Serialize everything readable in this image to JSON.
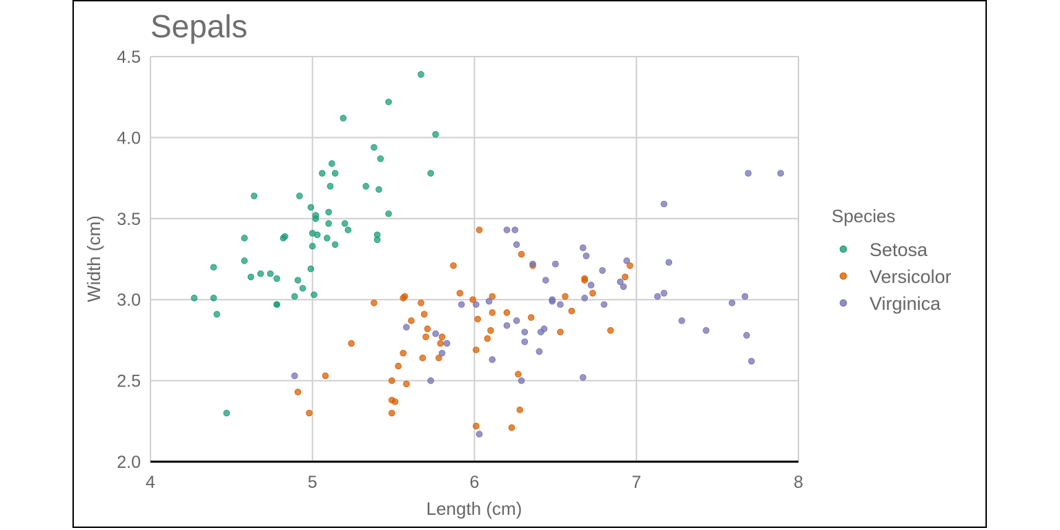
{
  "chart_data": {
    "type": "scatter",
    "title": "Sepals",
    "xlabel": "Length (cm)",
    "ylabel": "Width (cm)",
    "xlim": [
      4,
      8
    ],
    "ylim": [
      2.0,
      4.5
    ],
    "x_ticks": [
      "4",
      "5",
      "6",
      "7",
      "8"
    ],
    "y_ticks": [
      "2.0",
      "2.5",
      "3.0",
      "3.5",
      "4.0",
      "4.5"
    ],
    "grid": true,
    "legend": {
      "title": "Species",
      "position": "right"
    },
    "series": [
      {
        "name": "Setosa",
        "color": "#1b9e77",
        "points": [
          [
            4.27,
            3.01
          ],
          [
            4.39,
            3.01
          ],
          [
            4.39,
            3.2
          ],
          [
            4.41,
            2.91
          ],
          [
            4.47,
            2.3
          ],
          [
            4.58,
            3.38
          ],
          [
            4.58,
            3.24
          ],
          [
            4.62,
            3.14
          ],
          [
            4.64,
            3.64
          ],
          [
            4.68,
            3.16
          ],
          [
            4.74,
            3.16
          ],
          [
            4.78,
            3.13
          ],
          [
            4.78,
            2.97
          ],
          [
            4.78,
            2.97
          ],
          [
            4.82,
            3.38
          ],
          [
            4.83,
            3.39
          ],
          [
            4.89,
            3.02
          ],
          [
            4.91,
            3.12
          ],
          [
            4.92,
            3.64
          ],
          [
            4.94,
            3.07
          ],
          [
            4.99,
            3.57
          ],
          [
            4.99,
            3.19
          ],
          [
            5.0,
            3.41
          ],
          [
            5.0,
            3.33
          ],
          [
            5.01,
            3.03
          ],
          [
            5.02,
            3.5
          ],
          [
            5.02,
            3.52
          ],
          [
            5.03,
            3.4
          ],
          [
            5.06,
            3.78
          ],
          [
            5.09,
            3.38
          ],
          [
            5.1,
            3.47
          ],
          [
            5.1,
            3.54
          ],
          [
            5.11,
            3.7
          ],
          [
            5.12,
            3.84
          ],
          [
            5.14,
            3.78
          ],
          [
            5.14,
            3.34
          ],
          [
            5.19,
            4.12
          ],
          [
            5.2,
            3.47
          ],
          [
            5.22,
            3.43
          ],
          [
            5.33,
            3.7
          ],
          [
            5.38,
            3.94
          ],
          [
            5.4,
            3.4
          ],
          [
            5.4,
            3.37
          ],
          [
            5.41,
            3.68
          ],
          [
            5.42,
            3.87
          ],
          [
            5.47,
            3.53
          ],
          [
            5.47,
            4.22
          ],
          [
            5.67,
            4.39
          ],
          [
            5.73,
            3.78
          ],
          [
            5.76,
            4.02
          ]
        ]
      },
      {
        "name": "Versicolor",
        "color": "#d95f02",
        "points": [
          [
            4.91,
            2.43
          ],
          [
            4.98,
            2.3
          ],
          [
            5.08,
            2.53
          ],
          [
            5.24,
            2.73
          ],
          [
            5.38,
            2.98
          ],
          [
            5.49,
            2.5
          ],
          [
            5.49,
            2.38
          ],
          [
            5.49,
            2.3
          ],
          [
            5.51,
            2.37
          ],
          [
            5.53,
            2.59
          ],
          [
            5.56,
            3.01
          ],
          [
            5.56,
            2.67
          ],
          [
            5.57,
            3.02
          ],
          [
            5.58,
            2.48
          ],
          [
            5.61,
            2.87
          ],
          [
            5.67,
            2.98
          ],
          [
            5.68,
            2.64
          ],
          [
            5.69,
            2.91
          ],
          [
            5.7,
            2.77
          ],
          [
            5.71,
            2.82
          ],
          [
            5.78,
            2.64
          ],
          [
            5.79,
            2.73
          ],
          [
            5.8,
            2.77
          ],
          [
            5.87,
            3.21
          ],
          [
            5.91,
            3.04
          ],
          [
            6.01,
            2.22
          ],
          [
            6.01,
            2.69
          ],
          [
            6.02,
            2.88
          ],
          [
            6.03,
            3.43
          ],
          [
            6.08,
            2.76
          ],
          [
            6.1,
            2.81
          ],
          [
            6.11,
            2.92
          ],
          [
            6.11,
            3.02
          ],
          [
            6.2,
            2.92
          ],
          [
            6.23,
            2.21
          ],
          [
            6.27,
            2.54
          ],
          [
            6.28,
            2.32
          ],
          [
            6.29,
            3.28
          ],
          [
            6.35,
            2.89
          ],
          [
            6.36,
            3.21
          ],
          [
            6.53,
            2.8
          ],
          [
            6.56,
            3.02
          ],
          [
            6.6,
            2.93
          ],
          [
            6.68,
            3.13
          ],
          [
            6.68,
            3.12
          ],
          [
            6.73,
            3.04
          ],
          [
            6.84,
            2.81
          ],
          [
            6.93,
            3.14
          ],
          [
            6.96,
            3.21
          ],
          [
            5.99,
            3.0
          ]
        ]
      },
      {
        "name": "Virginica",
        "color": "#7570b3",
        "points": [
          [
            4.89,
            2.53
          ],
          [
            5.58,
            2.83
          ],
          [
            5.73,
            2.5
          ],
          [
            5.76,
            2.79
          ],
          [
            5.8,
            2.67
          ],
          [
            5.83,
            2.73
          ],
          [
            5.92,
            2.97
          ],
          [
            6.01,
            2.97
          ],
          [
            6.03,
            2.17
          ],
          [
            6.09,
            2.99
          ],
          [
            6.11,
            2.63
          ],
          [
            6.2,
            3.43
          ],
          [
            6.2,
            2.84
          ],
          [
            6.25,
            3.43
          ],
          [
            6.26,
            3.34
          ],
          [
            6.26,
            2.87
          ],
          [
            6.29,
            2.5
          ],
          [
            6.31,
            2.8
          ],
          [
            6.31,
            2.74
          ],
          [
            6.36,
            3.22
          ],
          [
            6.4,
            2.68
          ],
          [
            6.41,
            2.8
          ],
          [
            6.43,
            2.82
          ],
          [
            6.44,
            3.12
          ],
          [
            6.48,
            3.0
          ],
          [
            6.48,
            2.99
          ],
          [
            6.5,
            3.22
          ],
          [
            6.53,
            2.97
          ],
          [
            6.67,
            3.32
          ],
          [
            6.67,
            2.52
          ],
          [
            6.68,
            3.01
          ],
          [
            6.69,
            3.27
          ],
          [
            6.72,
            3.09
          ],
          [
            6.79,
            3.18
          ],
          [
            6.8,
            2.97
          ],
          [
            6.9,
            3.11
          ],
          [
            6.92,
            3.08
          ],
          [
            6.94,
            3.24
          ],
          [
            7.13,
            3.02
          ],
          [
            7.17,
            3.59
          ],
          [
            7.17,
            3.04
          ],
          [
            7.2,
            3.23
          ],
          [
            7.28,
            2.87
          ],
          [
            7.43,
            2.81
          ],
          [
            7.59,
            2.98
          ],
          [
            7.67,
            3.02
          ],
          [
            7.68,
            2.78
          ],
          [
            7.69,
            3.78
          ],
          [
            7.71,
            2.62
          ],
          [
            7.89,
            3.78
          ]
        ]
      }
    ]
  }
}
